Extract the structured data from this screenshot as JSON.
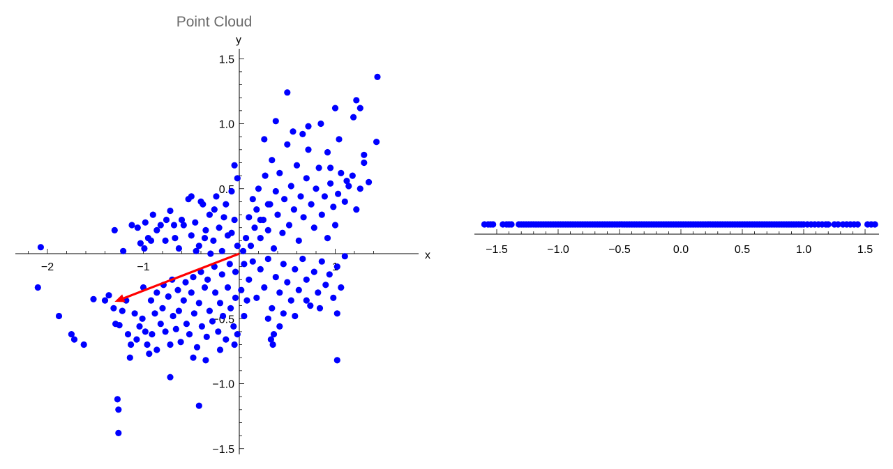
{
  "chart_data": [
    {
      "type": "scatter",
      "title": "Point Cloud",
      "xlabel": "x",
      "ylabel": "y",
      "xlim": [
        -2.2,
        1.45
      ],
      "ylim": [
        -1.55,
        1.55
      ],
      "x_ticks": [
        -2,
        -1,
        1
      ],
      "x_tick_labels": [
        "−2",
        "−1",
        "1"
      ],
      "y_ticks": [
        1.5,
        1.0,
        0.5,
        -0.5,
        -1.0,
        -1.5
      ],
      "y_tick_labels": [
        "1.5",
        "1.0",
        "0.5",
        "−0.5",
        "−1.0",
        "−1.5"
      ],
      "grid": false,
      "point_color": "#0000ff",
      "arrow_color": "#ff0000",
      "arrow": {
        "from": [
          0,
          0
        ],
        "to": [
          -1.3,
          -0.37
        ]
      },
      "points": [
        [
          -2.07,
          0.05
        ],
        [
          -2.1,
          -0.26
        ],
        [
          -1.88,
          -0.48
        ],
        [
          -1.75,
          -0.62
        ],
        [
          -1.72,
          -0.66
        ],
        [
          -1.62,
          -0.7
        ],
        [
          -1.52,
          -0.35
        ],
        [
          -1.4,
          -0.36
        ],
        [
          -1.36,
          -0.32
        ],
        [
          -1.31,
          -0.42
        ],
        [
          -1.29,
          -0.54
        ],
        [
          -1.25,
          -0.55
        ],
        [
          -1.22,
          -0.44
        ],
        [
          -1.18,
          -0.36
        ],
        [
          -1.16,
          -0.62
        ],
        [
          -1.13,
          -0.7
        ],
        [
          -1.09,
          -0.46
        ],
        [
          -1.07,
          -0.66
        ],
        [
          -1.04,
          -0.56
        ],
        [
          -1.01,
          -0.5
        ],
        [
          -0.98,
          -0.6
        ],
        [
          -0.96,
          -0.7
        ],
        [
          -0.94,
          -0.77
        ],
        [
          -0.91,
          -0.62
        ],
        [
          -0.88,
          -0.46
        ],
        [
          -0.86,
          -0.74
        ],
        [
          -0.82,
          -0.54
        ],
        [
          -0.8,
          -0.42
        ],
        [
          -0.77,
          -0.6
        ],
        [
          -0.74,
          -0.33
        ],
        [
          -0.72,
          -0.7
        ],
        [
          -0.69,
          -0.48
        ],
        [
          -0.66,
          -0.58
        ],
        [
          -0.63,
          -0.44
        ],
        [
          -0.61,
          -0.68
        ],
        [
          -0.58,
          -0.36
        ],
        [
          -0.55,
          -0.54
        ],
        [
          -0.52,
          -0.62
        ],
        [
          -0.5,
          -0.3
        ],
        [
          -0.47,
          -0.46
        ],
        [
          -0.44,
          -0.72
        ],
        [
          -0.42,
          -0.38
        ],
        [
          -0.39,
          -0.56
        ],
        [
          -0.36,
          -0.26
        ],
        [
          -0.34,
          -0.64
        ],
        [
          -0.31,
          -0.44
        ],
        [
          -0.28,
          -0.52
        ],
        [
          -0.25,
          -0.3
        ],
        [
          -0.22,
          -0.6
        ],
        [
          -0.2,
          -0.38
        ],
        [
          -0.17,
          -0.48
        ],
        [
          -0.14,
          -0.66
        ],
        [
          -0.12,
          -0.26
        ],
        [
          -0.09,
          -0.42
        ],
        [
          -0.06,
          -0.56
        ],
        [
          -0.04,
          -0.34
        ],
        [
          -0.02,
          -0.62
        ],
        [
          0.02,
          -0.28
        ],
        [
          0.05,
          -0.48
        ],
        [
          0.08,
          -0.36
        ],
        [
          -1.0,
          -0.26
        ],
        [
          -0.92,
          -0.36
        ],
        [
          -0.86,
          -0.3
        ],
        [
          -0.79,
          -0.24
        ],
        [
          -0.7,
          -0.2
        ],
        [
          -0.64,
          -0.28
        ],
        [
          -0.56,
          -0.22
        ],
        [
          -0.48,
          -0.18
        ],
        [
          -0.4,
          -0.14
        ],
        [
          -0.33,
          -0.2
        ],
        [
          -0.26,
          -0.1
        ],
        [
          -0.18,
          -0.16
        ],
        [
          -0.1,
          -0.08
        ],
        [
          -0.04,
          -0.14
        ],
        [
          -1.3,
          0.18
        ],
        [
          -1.21,
          0.02
        ],
        [
          -1.12,
          0.22
        ],
        [
          -1.06,
          0.2
        ],
        [
          -1.03,
          0.08
        ],
        [
          -0.99,
          0.04
        ],
        [
          -0.95,
          0.12
        ],
        [
          -0.9,
          0.3
        ],
        [
          -0.86,
          0.18
        ],
        [
          -0.82,
          0.22
        ],
        [
          -0.77,
          0.1
        ],
        [
          -0.72,
          0.33
        ],
        [
          -0.67,
          0.12
        ],
        [
          -0.63,
          0.04
        ],
        [
          -0.58,
          0.22
        ],
        [
          -0.53,
          0.42
        ],
        [
          -0.5,
          0.14
        ],
        [
          -0.46,
          0.24
        ],
        [
          -0.42,
          0.06
        ],
        [
          -0.38,
          0.38
        ],
        [
          -0.35,
          0.18
        ],
        [
          -0.31,
          0.3
        ],
        [
          -0.27,
          0.1
        ],
        [
          -0.24,
          0.44
        ],
        [
          -0.21,
          0.2
        ],
        [
          -0.18,
          0.02
        ],
        [
          -0.14,
          0.38
        ],
        [
          -0.12,
          0.14
        ],
        [
          -0.08,
          0.48
        ],
        [
          -0.05,
          0.26
        ],
        [
          -0.02,
          0.06
        ],
        [
          -0.3,
          0.0
        ],
        [
          -0.45,
          0.02
        ],
        [
          -0.6,
          0.26
        ],
        [
          -0.05,
          0.68
        ],
        [
          -0.02,
          0.58
        ],
        [
          0.04,
          0.02
        ],
        [
          0.07,
          0.12
        ],
        [
          0.1,
          0.28
        ],
        [
          0.12,
          0.06
        ],
        [
          0.14,
          0.42
        ],
        [
          0.16,
          0.2
        ],
        [
          0.18,
          0.34
        ],
        [
          0.2,
          0.5
        ],
        [
          0.22,
          0.12
        ],
        [
          0.25,
          0.26
        ],
        [
          0.27,
          0.6
        ],
        [
          0.3,
          0.18
        ],
        [
          0.32,
          0.38
        ],
        [
          0.34,
          0.72
        ],
        [
          0.36,
          0.04
        ],
        [
          0.38,
          0.48
        ],
        [
          0.4,
          0.3
        ],
        [
          0.42,
          0.62
        ],
        [
          0.45,
          0.16
        ],
        [
          0.47,
          0.42
        ],
        [
          0.5,
          0.84
        ],
        [
          0.52,
          0.22
        ],
        [
          0.54,
          0.52
        ],
        [
          0.57,
          0.34
        ],
        [
          0.6,
          0.68
        ],
        [
          0.62,
          0.1
        ],
        [
          0.64,
          0.44
        ],
        [
          0.67,
          0.28
        ],
        [
          0.7,
          0.58
        ],
        [
          0.72,
          0.8
        ],
        [
          0.75,
          0.38
        ],
        [
          0.78,
          0.2
        ],
        [
          0.8,
          0.5
        ],
        [
          0.83,
          0.66
        ],
        [
          0.86,
          0.3
        ],
        [
          0.89,
          0.44
        ],
        [
          0.92,
          0.12
        ],
        [
          0.95,
          0.54
        ],
        [
          0.98,
          0.36
        ],
        [
          1.0,
          0.22
        ],
        [
          1.03,
          0.46
        ],
        [
          1.06,
          0.62
        ],
        [
          1.1,
          0.4
        ],
        [
          1.14,
          0.52
        ],
        [
          1.18,
          0.6
        ],
        [
          1.22,
          0.34
        ],
        [
          1.26,
          0.5
        ],
        [
          1.3,
          0.7
        ],
        [
          1.35,
          0.55
        ],
        [
          0.26,
          0.88
        ],
        [
          0.38,
          1.02
        ],
        [
          0.5,
          1.24
        ],
        [
          0.56,
          0.94
        ],
        [
          0.66,
          0.92
        ],
        [
          0.72,
          0.98
        ],
        [
          0.85,
          1.0
        ],
        [
          0.92,
          0.78
        ],
        [
          0.95,
          0.66
        ],
        [
          1.0,
          1.12
        ],
        [
          1.04,
          0.88
        ],
        [
          1.12,
          0.56
        ],
        [
          1.19,
          1.05
        ],
        [
          1.22,
          1.18
        ],
        [
          1.26,
          1.12
        ],
        [
          1.3,
          0.76
        ],
        [
          1.44,
          1.36
        ],
        [
          1.43,
          0.86
        ],
        [
          0.3,
          0.38
        ],
        [
          0.22,
          0.26
        ],
        [
          0.05,
          -0.08
        ],
        [
          0.1,
          -0.2
        ],
        [
          0.14,
          -0.06
        ],
        [
          0.18,
          -0.34
        ],
        [
          0.22,
          -0.12
        ],
        [
          0.26,
          -0.26
        ],
        [
          0.3,
          -0.04
        ],
        [
          0.34,
          -0.42
        ],
        [
          0.38,
          -0.18
        ],
        [
          0.42,
          -0.3
        ],
        [
          0.46,
          -0.08
        ],
        [
          0.5,
          -0.22
        ],
        [
          0.54,
          -0.36
        ],
        [
          0.58,
          -0.12
        ],
        [
          0.62,
          -0.28
        ],
        [
          0.66,
          -0.04
        ],
        [
          0.7,
          -0.2
        ],
        [
          0.74,
          -0.4
        ],
        [
          0.78,
          -0.14
        ],
        [
          0.82,
          -0.3
        ],
        [
          0.86,
          -0.06
        ],
        [
          0.9,
          -0.24
        ],
        [
          0.94,
          -0.16
        ],
        [
          0.98,
          -0.34
        ],
        [
          1.02,
          -0.1
        ],
        [
          1.06,
          -0.26
        ],
        [
          1.1,
          -0.02
        ],
        [
          0.3,
          -0.5
        ],
        [
          0.36,
          -0.62
        ],
        [
          0.42,
          -0.56
        ],
        [
          0.46,
          -0.46
        ],
        [
          0.58,
          -0.48
        ],
        [
          0.7,
          -0.36
        ],
        [
          0.84,
          -0.42
        ],
        [
          1.02,
          -0.46
        ],
        [
          0.35,
          -0.7
        ],
        [
          0.33,
          -0.66
        ],
        [
          -1.27,
          -1.12
        ],
        [
          -1.26,
          -1.2
        ],
        [
          -1.26,
          -1.38
        ],
        [
          -1.14,
          -0.8
        ],
        [
          -0.72,
          -0.95
        ],
        [
          -0.42,
          -1.17
        ],
        [
          -0.35,
          -0.82
        ],
        [
          -0.48,
          -0.8
        ],
        [
          -0.2,
          -0.74
        ],
        [
          -0.05,
          -0.7
        ],
        [
          1.02,
          -0.82
        ],
        [
          -0.5,
          0.44
        ],
        [
          -0.4,
          0.4
        ],
        [
          -0.26,
          0.34
        ],
        [
          -0.16,
          0.28
        ],
        [
          -0.08,
          0.16
        ],
        [
          -0.68,
          0.22
        ],
        [
          -0.92,
          0.1
        ],
        [
          -0.98,
          0.24
        ],
        [
          -0.76,
          0.26
        ],
        [
          -0.36,
          0.12
        ]
      ]
    },
    {
      "type": "scatter",
      "title": "",
      "xlabel": "",
      "ylabel": "",
      "xlim": [
        -1.62,
        1.58
      ],
      "x_ticks": [
        -1.5,
        -1.0,
        -0.5,
        0.0,
        0.5,
        1.0,
        1.5
      ],
      "x_tick_labels": [
        "−1.5",
        "−1.0",
        "−0.5",
        "0.0",
        "0.5",
        "1.0",
        "1.5"
      ],
      "grid": false,
      "point_color": "#0000ff",
      "description_of_values": "projections of the point cloud onto a single line",
      "values": [
        -1.6,
        -1.57,
        -1.55,
        -1.53,
        -1.45,
        -1.42,
        -1.4,
        -1.38,
        -1.32,
        -1.3,
        -1.28,
        -1.26,
        -1.24,
        -1.22,
        -1.2,
        -1.18,
        -1.16,
        -1.14,
        -1.12,
        -1.1,
        -1.08,
        -1.06,
        -1.04,
        -1.02,
        -1.0,
        -0.98,
        -0.96,
        -0.94,
        -0.92,
        -0.9,
        -0.88,
        -0.86,
        -0.84,
        -0.82,
        -0.8,
        -0.78,
        -0.76,
        -0.74,
        -0.72,
        -0.7,
        -0.68,
        -0.66,
        -0.64,
        -0.62,
        -0.6,
        -0.58,
        -0.56,
        -0.54,
        -0.52,
        -0.5,
        -0.48,
        -0.46,
        -0.44,
        -0.42,
        -0.4,
        -0.38,
        -0.36,
        -0.34,
        -0.32,
        -0.3,
        -0.28,
        -0.26,
        -0.24,
        -0.22,
        -0.2,
        -0.18,
        -0.16,
        -0.14,
        -0.12,
        -0.1,
        -0.08,
        -0.06,
        -0.04,
        -0.02,
        0.0,
        0.02,
        0.04,
        0.06,
        0.08,
        0.1,
        0.12,
        0.14,
        0.16,
        0.18,
        0.2,
        0.22,
        0.24,
        0.26,
        0.28,
        0.3,
        0.32,
        0.34,
        0.36,
        0.38,
        0.4,
        0.42,
        0.44,
        0.46,
        0.48,
        0.5,
        0.52,
        0.54,
        0.56,
        0.58,
        0.6,
        0.62,
        0.64,
        0.66,
        0.68,
        0.7,
        0.72,
        0.74,
        0.76,
        0.78,
        0.8,
        0.82,
        0.84,
        0.86,
        0.88,
        0.9,
        0.92,
        0.94,
        0.96,
        0.98,
        1.0,
        1.03,
        1.06,
        1.09,
        1.12,
        1.15,
        1.18,
        1.2,
        1.25,
        1.28,
        1.32,
        1.35,
        1.38,
        1.41,
        1.44,
        1.52,
        1.55,
        1.58
      ]
    }
  ]
}
